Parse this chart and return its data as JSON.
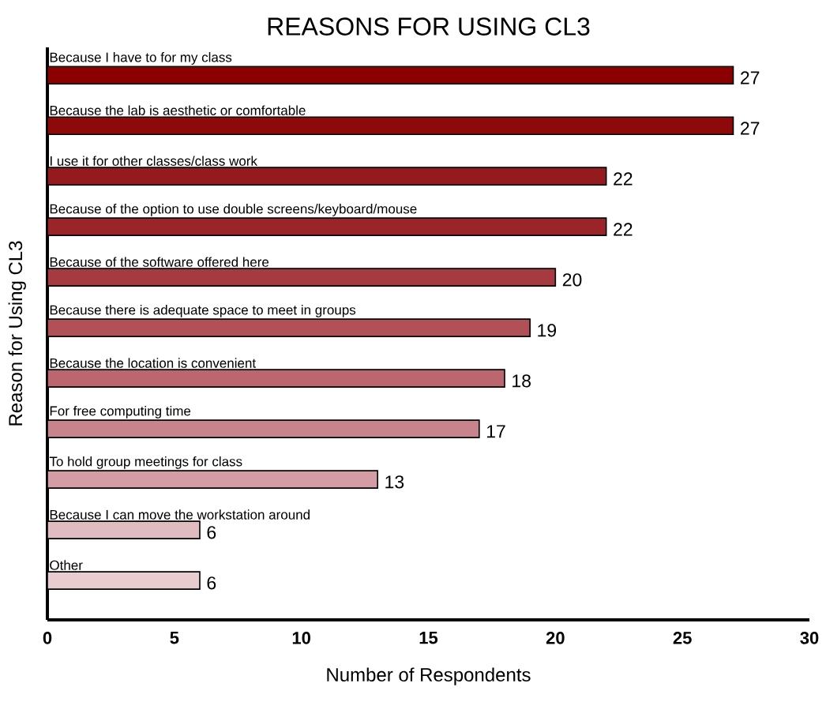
{
  "chart_data": {
    "type": "bar",
    "orientation": "horizontal",
    "title": "REASONS FOR USING CL3",
    "xlabel": "Number of Respondents",
    "ylabel": "Reason for Using CL3",
    "categories": [
      "Because I have to for my class",
      "Because the lab is aesthetic or comfortable",
      "I use it for other classes/class work",
      "Because of the option to use double screens/keyboard/mouse",
      "Because of the software offered here",
      "Because there is adequate space to meet in groups",
      "Because the location is convenient",
      "For free computing time",
      "To hold group meetings for class",
      "Because I can move the workstation around",
      "Other"
    ],
    "values": [
      27,
      27,
      22,
      22,
      20,
      19,
      18,
      17,
      13,
      6,
      6
    ],
    "colors": [
      "#8b0000",
      "#8e0a0a",
      "#951a1e",
      "#9a2428",
      "#a53a40",
      "#b25058",
      "#bc6670",
      "#c8848c",
      "#d49ca4",
      "#e0bcc0",
      "#e8ccd0"
    ],
    "xlim": [
      0,
      30
    ],
    "xticks": [
      0,
      5,
      10,
      15,
      20,
      25,
      30
    ],
    "data_labels": true,
    "grid": false
  }
}
